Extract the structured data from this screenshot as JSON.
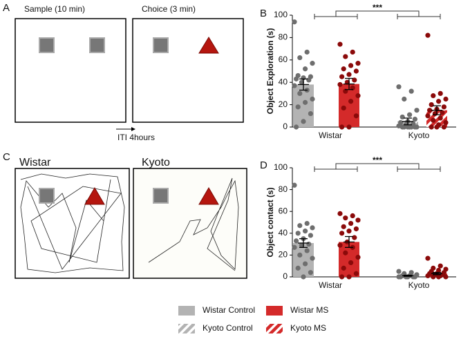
{
  "panel_a": {
    "label": "A",
    "sample_title": "Sample (10 min)",
    "choice_title": "Choice (3 min)",
    "iti": "ITI 4hours"
  },
  "panel_c": {
    "label": "C",
    "titles": [
      "Wistar",
      "Kyoto"
    ]
  },
  "chart_data": [
    {
      "type": "bar",
      "panel": "B",
      "ylabel": "Object Exploration (s)",
      "annotation": "***",
      "categories": [
        "Wistar",
        "Kyoto"
      ],
      "ylim": [
        0,
        100
      ],
      "yticks": [
        0,
        20,
        40,
        60,
        80,
        100
      ],
      "series": [
        {
          "name": "Wistar Control",
          "color": "#b3b3b3",
          "point_color": "#6e6e6e",
          "hatch": false,
          "values": [
            38,
            null
          ],
          "errors": [
            5,
            null
          ],
          "points": [
            94,
            67,
            62,
            57,
            52,
            46,
            45,
            44,
            43,
            42,
            40,
            37,
            33,
            30,
            25,
            22,
            18,
            12,
            5,
            0
          ]
        },
        {
          "name": "Wistar MS",
          "color": "#d42a2a",
          "point_color": "#8b0a0a",
          "hatch": false,
          "values": [
            38.5,
            null
          ],
          "errors": [
            5,
            null
          ],
          "points": [
            74,
            67,
            63,
            57,
            55,
            52,
            50,
            47,
            45,
            42,
            40,
            38,
            35,
            32,
            28,
            23,
            17,
            10,
            0,
            0
          ]
        },
        {
          "name": "Kyoto Control",
          "color": "#b3b3b3",
          "point_color": "#6e6e6e",
          "hatch": true,
          "values": [
            null,
            5
          ],
          "errors": [
            null,
            3
          ],
          "points": [
            36,
            32,
            25,
            15,
            11,
            9,
            7,
            5,
            4,
            3,
            2,
            1,
            0,
            0,
            0,
            0,
            0,
            0,
            0
          ]
        },
        {
          "name": "Kyoto MS",
          "color": "#d42a2a",
          "point_color": "#8b0a0a",
          "hatch": true,
          "values": [
            null,
            15
          ],
          "errors": [
            null,
            4
          ],
          "points": [
            82,
            30,
            28,
            25,
            23,
            20,
            18,
            16,
            15,
            13,
            12,
            10,
            8,
            6,
            4,
            2,
            0,
            0,
            0
          ]
        }
      ]
    },
    {
      "type": "bar",
      "panel": "D",
      "ylabel": "Object contact (s)",
      "annotation": "***",
      "categories": [
        "Wistar",
        "Kyoto"
      ],
      "ylim": [
        0,
        100
      ],
      "yticks": [
        0,
        20,
        40,
        60,
        80,
        100
      ],
      "series": [
        {
          "color": "#b3b3b3",
          "point_color": "#6e6e6e",
          "hatch": false,
          "values": [
            31,
            null
          ],
          "errors": [
            4,
            null
          ],
          "points": [
            84,
            49,
            47,
            45,
            42,
            40,
            38,
            35,
            33,
            30,
            29,
            27,
            24,
            20,
            17,
            12,
            8,
            4,
            0
          ]
        },
        {
          "color": "#d42a2a",
          "point_color": "#8b0a0a",
          "hatch": false,
          "values": [
            32,
            null
          ],
          "errors": [
            5,
            null
          ],
          "points": [
            58,
            56,
            54,
            52,
            49,
            46,
            44,
            42,
            40,
            36,
            32,
            29,
            27,
            22,
            18,
            13,
            8,
            3,
            0,
            0
          ]
        },
        {
          "color": "#b3b3b3",
          "point_color": "#6e6e6e",
          "hatch": true,
          "values": [
            null,
            1
          ],
          "errors": [
            null,
            0.5
          ],
          "points": [
            5,
            4,
            3,
            2,
            1,
            1,
            0,
            0,
            0,
            0,
            0,
            0
          ]
        },
        {
          "color": "#d42a2a",
          "point_color": "#8b0a0a",
          "hatch": true,
          "values": [
            null,
            3
          ],
          "errors": [
            null,
            1
          ],
          "points": [
            17,
            10,
            8,
            7,
            6,
            5,
            4,
            3,
            3,
            2,
            2,
            1,
            1,
            0,
            0,
            0
          ]
        }
      ]
    }
  ]
}
